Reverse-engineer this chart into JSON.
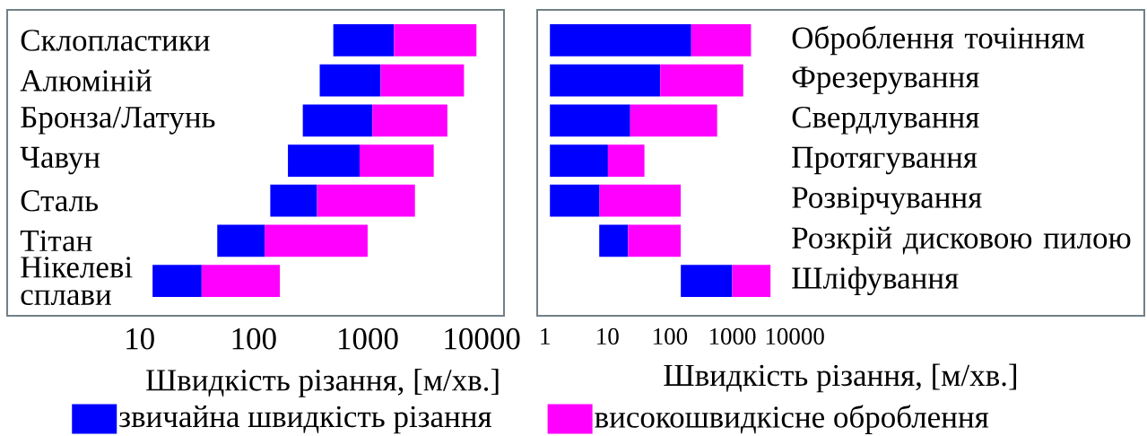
{
  "chart_data": [
    {
      "type": "bar",
      "orientation": "horizontal",
      "stacked": true,
      "log": "x",
      "categories": [
        "Склопластики",
        "Алюміній",
        "Бронза/Латунь",
        "Чавун",
        "Сталь",
        "Тітан",
        "Нікелеві сплави"
      ],
      "series": [
        {
          "name": "звичайна швидкість різання",
          "color": "#0000ff",
          "base": [
            500,
            380,
            270,
            200,
            140,
            48,
            13
          ],
          "values": [
            1200,
            920,
            830,
            650,
            220,
            77,
            22
          ]
        },
        {
          "name": "високошвидкісне оброблення",
          "color": "#ff00ff",
          "base": [
            1700,
            1300,
            1100,
            850,
            360,
            125,
            35
          ],
          "values": [
            7300,
            5700,
            3900,
            2950,
            2240,
            875,
            135
          ]
        }
      ],
      "xlim": [
        0.69,
        15700
      ],
      "xticks": [
        10,
        100,
        1000,
        10000
      ],
      "xlabel": "Швидкість різання, [м/хв.]",
      "legend": "bottom"
    },
    {
      "type": "bar",
      "orientation": "horizontal",
      "stacked": true,
      "log": "x",
      "categories": [
        "Оброблення точінням",
        "Фрезерування",
        "Свердлування",
        "Протягування",
        "Розвірчування",
        "Розкрій дисковою пилою",
        "Шліфування"
      ],
      "series": [
        {
          "color": "#0000ff",
          "base": [
            1.2,
            1.2,
            1.2,
            1.2,
            1.2,
            7.4,
            150
          ],
          "values": [
            219,
            69,
            22,
            9,
            6.3,
            14,
            850
          ]
        },
        {
          "color": "#ff00ff",
          "base": [
            220.2,
            70.2,
            23.2,
            10.2,
            7.5,
            21.4,
            1000
          ],
          "values": [
            1780,
            1430,
            550,
            29,
            142,
            128,
            3100
          ]
        }
      ],
      "xlim": [
        0.75,
        4000000000
      ],
      "xticks": [
        1,
        10,
        100,
        1000,
        10000
      ],
      "xlabel": "Швидкість різання, [м/хв.]"
    }
  ]
}
